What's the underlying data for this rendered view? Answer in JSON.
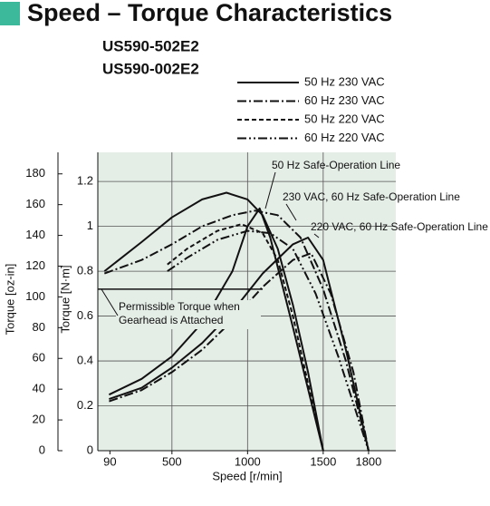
{
  "chart_data": {
    "type": "line",
    "title": "Speed – Torque Characteristics",
    "models": [
      "US590-502E2",
      "US590-002E2"
    ],
    "x_label": "Speed [r/min]",
    "y_label": "Torque [N·m]",
    "y2_label": "Torque [oz-in]",
    "xlim": [
      10,
      1980
    ],
    "xticks": [
      90,
      500,
      1000,
      1500,
      1800
    ],
    "ylim": [
      0,
      1.33
    ],
    "yticks": [
      0,
      0.2,
      0.4,
      0.6,
      0.8,
      1.0,
      1.2
    ],
    "y2lim": [
      0,
      194
    ],
    "y2ticks": [
      0,
      20,
      40,
      60,
      80,
      100,
      120,
      140,
      160,
      180
    ],
    "grid": true,
    "legend": "top-right",
    "series": [
      {
        "name": "50 Hz 230 VAC",
        "color": "#111111",
        "dash": "solid",
        "x": [
          54,
          300,
          500,
          700,
          860,
          1000,
          1100,
          1200,
          1300,
          1400,
          1500
        ],
        "values": [
          0.8,
          0.93,
          1.04,
          1.12,
          1.15,
          1.12,
          1.05,
          0.9,
          0.65,
          0.35,
          0
        ]
      },
      {
        "name": "60 Hz 230 VAC",
        "color": "#111111",
        "dash": "dash-dot",
        "x": [
          54,
          300,
          500,
          700,
          900,
          1050,
          1200,
          1350,
          1500,
          1650,
          1800
        ],
        "values": [
          0.79,
          0.85,
          0.92,
          1.0,
          1.05,
          1.07,
          1.05,
          0.95,
          0.72,
          0.4,
          0
        ]
      },
      {
        "name": "50 Hz 220 VAC",
        "color": "#111111",
        "dash": "dashed",
        "x": [
          470,
          600,
          800,
          960,
          1100,
          1200,
          1300,
          1400,
          1500
        ],
        "values": [
          0.83,
          0.9,
          0.98,
          1.01,
          0.97,
          0.85,
          0.6,
          0.3,
          0
        ]
      },
      {
        "name": "60 Hz 220 VAC",
        "color": "#111111",
        "dash": "dash-dot-dot",
        "x": [
          470,
          600,
          800,
          1000,
          1150,
          1300,
          1450,
          1600,
          1800
        ],
        "values": [
          0.8,
          0.86,
          0.94,
          0.98,
          0.97,
          0.9,
          0.7,
          0.42,
          0
        ]
      }
    ],
    "safe_lines": [
      {
        "name": "50 Hz Safe-Operation Line",
        "color": "#111111",
        "dash": "solid",
        "x": [
          84,
          300,
          500,
          700,
          900,
          1000,
          1080,
          1150,
          1300,
          1500
        ],
        "values": [
          0.25,
          0.32,
          0.42,
          0.57,
          0.8,
          1.0,
          1.08,
          0.95,
          0.55,
          0
        ]
      },
      {
        "name": "230 VAC, 60 Hz Safe-Operation Line",
        "color": "#111111",
        "dash": "solid",
        "x": [
          84,
          300,
          500,
          700,
          900,
          1100,
          1300,
          1400,
          1500,
          1650,
          1800
        ],
        "values": [
          0.23,
          0.28,
          0.37,
          0.48,
          0.62,
          0.79,
          0.92,
          0.95,
          0.85,
          0.45,
          0
        ]
      },
      {
        "name": "220 VAC, 60 Hz Safe-Operation Line",
        "color": "#111111",
        "dash": "dash-dot",
        "x": [
          84,
          300,
          500,
          700,
          900,
          1100,
          1300,
          1420,
          1550,
          1700,
          1800
        ],
        "values": [
          0.22,
          0.27,
          0.35,
          0.45,
          0.58,
          0.73,
          0.85,
          0.88,
          0.7,
          0.35,
          0
        ]
      }
    ],
    "permissible_torque": {
      "label": [
        "Permissible Torque when",
        "Gearhead is Attached"
      ],
      "value": 0.72,
      "x": [
        10,
        1100
      ]
    }
  }
}
